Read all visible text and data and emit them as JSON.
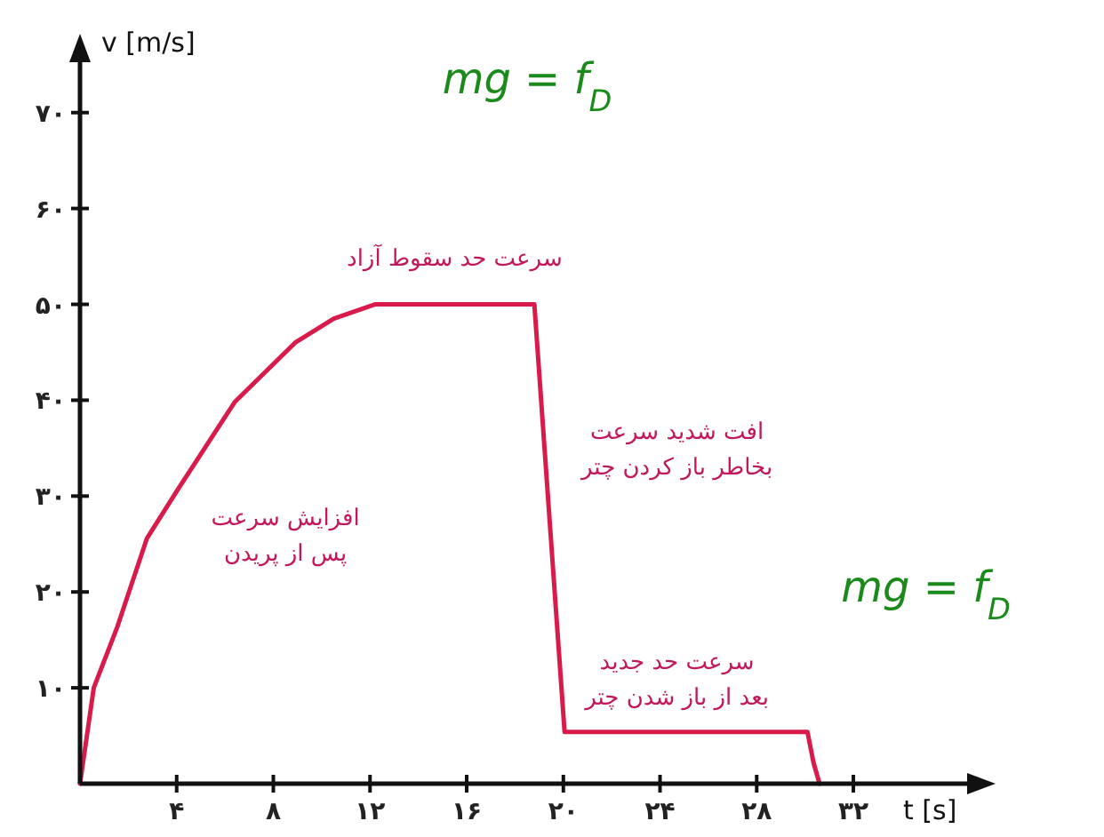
{
  "chart_data": {
    "type": "line",
    "xlabel": "t [s]",
    "ylabel": "v [m/s]",
    "x": [
      0,
      0.57,
      1.55,
      2.77,
      4,
      6.4,
      8.9,
      10.5,
      12.2,
      18.8,
      20.05,
      30.1,
      30.35,
      30.6
    ],
    "series": [
      {
        "color": "#d81b4a",
        "values": [
          0,
          10,
          16.4,
          25.6,
          30.5,
          39.8,
          46,
          48.5,
          50,
          50,
          5.4,
          5.4,
          2.2,
          0
        ]
      }
    ],
    "xlim": [
      0,
      37
    ],
    "ylim": [
      0,
      76
    ],
    "xticks": [
      {
        "value": 4,
        "label": "۴"
      },
      {
        "value": 8,
        "label": "۸"
      },
      {
        "value": 12,
        "label": "۱۲"
      },
      {
        "value": 16,
        "label": "۱۶"
      },
      {
        "value": 20,
        "label": "۲۰"
      },
      {
        "value": 24,
        "label": "۲۴"
      },
      {
        "value": 28,
        "label": "۲۸"
      },
      {
        "value": 32,
        "label": "۳۲"
      }
    ],
    "yticks": [
      {
        "value": 10,
        "label": "۱۰"
      },
      {
        "value": 20,
        "label": "۲۰"
      },
      {
        "value": 30,
        "label": "۳۰"
      },
      {
        "value": 40,
        "label": "۴۰"
      },
      {
        "value": 50,
        "label": "۵۰"
      },
      {
        "value": 60,
        "label": "۶۰"
      },
      {
        "value": 70,
        "label": "۷۰"
      }
    ],
    "grid": false,
    "marker": "none",
    "line_style": "solid",
    "annotations": [
      "سرعت حد سقوط آزاد",
      "افزایش سرعت\nپس از پریدن",
      "افت شدید سرعت\nبخاطر باز کردن چتر",
      "سرعت حد جدید\nبعد از باز شدن چتر",
      "mg = f$_{D}$",
      "mg = f$_{D}$"
    ]
  }
}
